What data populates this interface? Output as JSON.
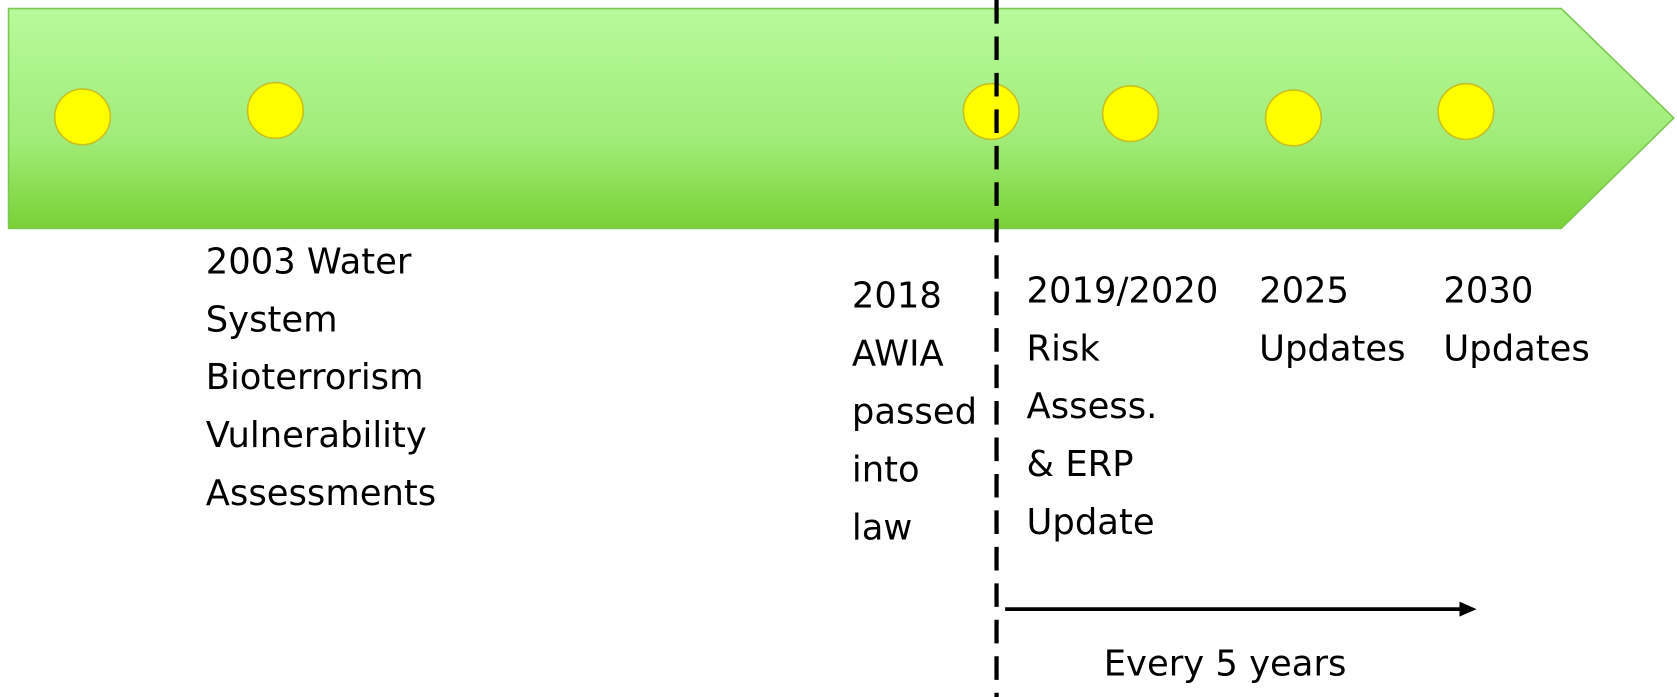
{
  "events": [
    {
      "lines": [
        "2003 Water",
        "System",
        "Bioterrorism",
        "Vulnerability",
        "Assessments"
      ]
    },
    {
      "lines": [
        "2018",
        "AWIA",
        "passed",
        "into",
        "law"
      ]
    },
    {
      "lines": [
        "2019/2020",
        "Risk",
        "Assess.",
        "& ERP",
        "Update"
      ]
    },
    {
      "lines": [
        "2025",
        "Updates"
      ]
    },
    {
      "lines": [
        "2030",
        "Updates"
      ]
    }
  ],
  "note": "Every 5 years"
}
